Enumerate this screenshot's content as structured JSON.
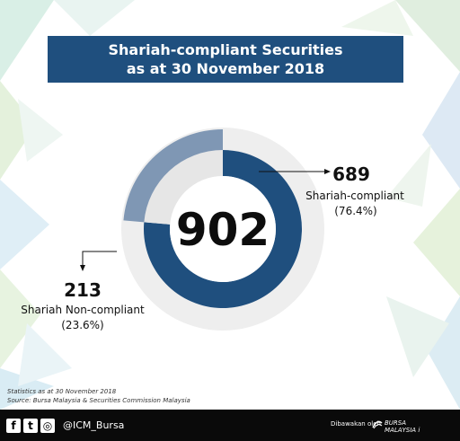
{
  "header": {
    "title_line1": "Shariah-compliant Securities",
    "title_line2": "as at 30 November 2018"
  },
  "chart_data": {
    "type": "pie",
    "total": 902,
    "slices": [
      {
        "value": 689,
        "label": "Shariah-compliant",
        "percent": "(76.4%)",
        "color": "#1f4f7e"
      },
      {
        "value": 213,
        "label": "Shariah Non-compliant",
        "percent": "(23.6%)",
        "color": "#7f97b4"
      }
    ]
  },
  "footnotes": {
    "stats": "Statistics as at 30 November 2018",
    "source": "Source: Bursa Malaysia & Securities Commission Malaysia"
  },
  "footer": {
    "facebook_glyph": "f",
    "twitter_glyph": "t",
    "instagram_glyph": "◎",
    "handle": "@ICM_Bursa",
    "powered_by": "Dibawakan oleh",
    "logo_line1": "BURSA",
    "logo_line2": "MALAYSIA i"
  },
  "colors": {
    "title_bg": "#1f4f7e",
    "compliant": "#1f4f7e",
    "non_compliant": "#7f97b4",
    "ring_back": "#eeeeee",
    "footer_bg": "#0a0a0a"
  }
}
